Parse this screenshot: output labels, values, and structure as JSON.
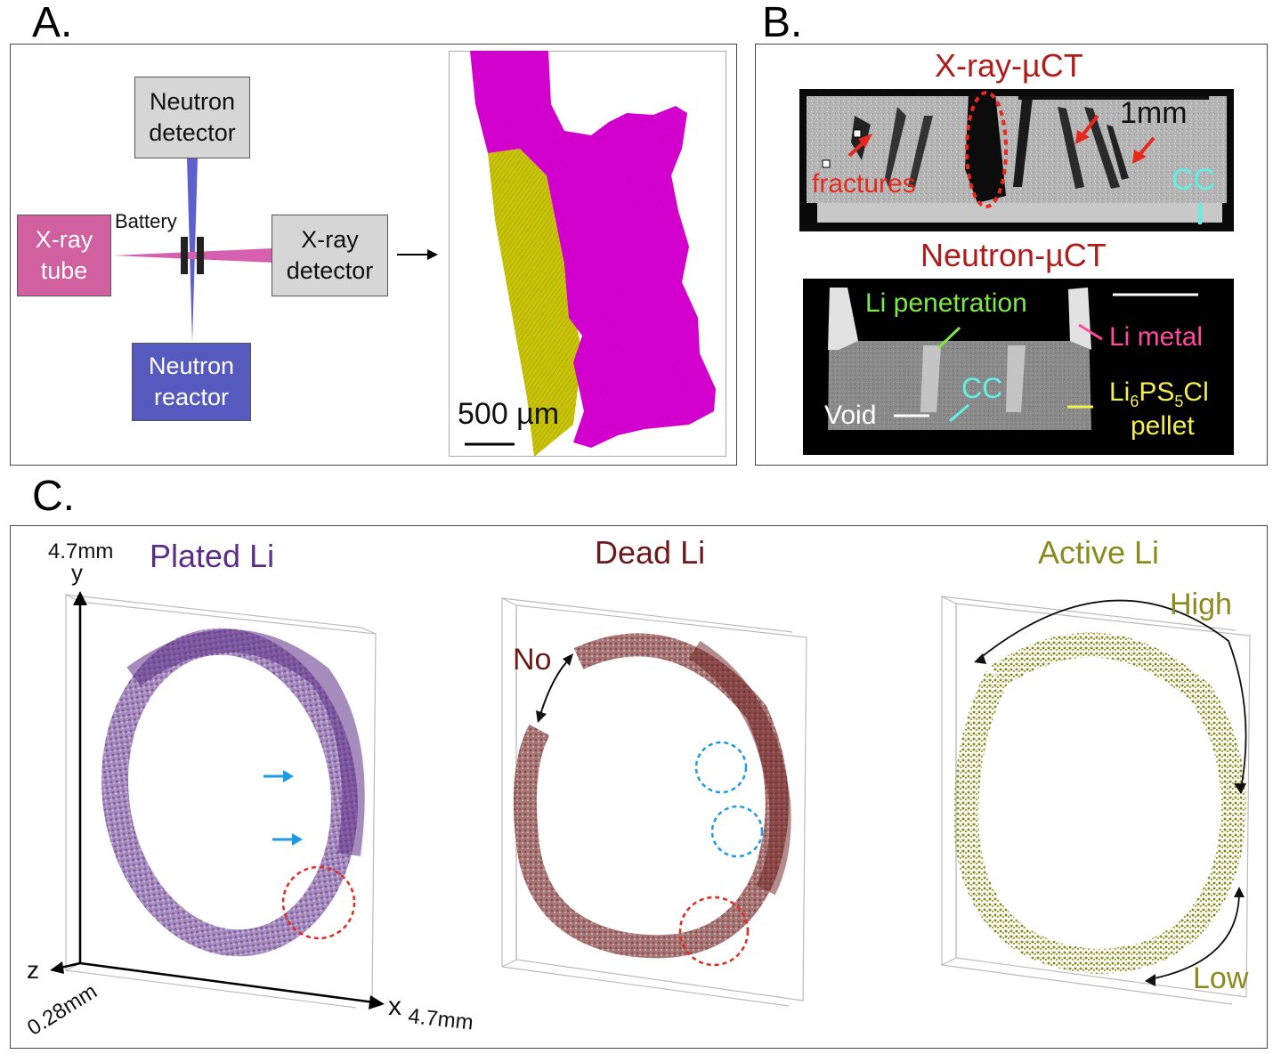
{
  "figure": {
    "panels": {
      "a": {
        "letter": "A.",
        "boxes": {
          "neutron_detector": "Neutron\ndetector",
          "xray_tube": "X-ray\ntube",
          "xray_detector": "X-ray\ndetector",
          "neutron_reactor": "Neutron\nreactor"
        },
        "battery_label": "Battery",
        "scale_bar": "500 µm",
        "colors": {
          "lithium": "#d500d0",
          "pellet": "#c9c40a"
        }
      },
      "b": {
        "letter": "B.",
        "xray_title": "X-ray-µCT",
        "neutron_title": "Neutron-µCT",
        "xray_scale": "1mm",
        "xray_labels": {
          "fractures": "fractures",
          "cc": "CC"
        },
        "neutron_labels": {
          "li_penetration": "Li penetration",
          "li_metal": "Li metal",
          "cc": "CC",
          "void": "Void",
          "pellet_line1_pre": "Li",
          "pellet_sub1": "6",
          "pellet_mid": "PS",
          "pellet_sub2": "5",
          "pellet_post": "Cl",
          "pellet_line2": "pellet"
        },
        "colors": {
          "li_penetration": "#7ee84a",
          "li_metal": "#ff4aa0",
          "cc": "#5ff0e6",
          "pellet": "#f5ee50",
          "arrow": "#e8281c"
        }
      },
      "c": {
        "letter": "C.",
        "axes": {
          "y_max": "4.7mm",
          "y": "y",
          "z": "z",
          "x": "x",
          "x_max": "4.7mm",
          "z_depth": "0.28mm"
        },
        "renders": [
          {
            "title": "Plated Li",
            "color": "#5c2d86"
          },
          {
            "title": "Dead Li",
            "color": "#6a1a1a",
            "annotation": "No"
          },
          {
            "title": "Active Li",
            "color": "#8a8a1e",
            "high": "High",
            "low": "Low"
          }
        ]
      }
    }
  }
}
